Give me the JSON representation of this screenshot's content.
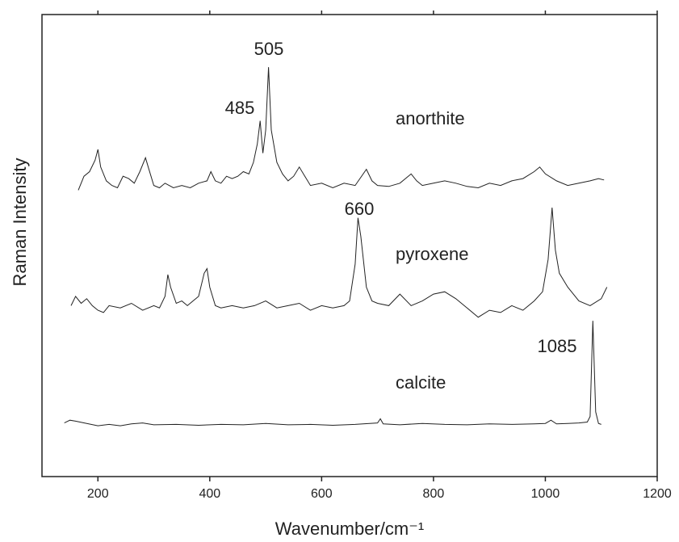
{
  "chart_data": {
    "type": "line",
    "x_label": "Wavenumber/cm⁻¹",
    "y_label": "Raman Intensity",
    "xlim": [
      100,
      1200
    ],
    "xticks": [
      200,
      400,
      600,
      800,
      1000,
      1200
    ],
    "ylim": [
      0,
      100
    ],
    "annotations": [
      "505",
      "485",
      "660",
      "1085"
    ],
    "series": [
      {
        "name": "anorthite",
        "color": "#222222",
        "x": [
          165,
          175,
          185,
          195,
          200,
          205,
          215,
          225,
          235,
          245,
          255,
          265,
          275,
          285,
          290,
          300,
          310,
          320,
          335,
          350,
          365,
          380,
          395,
          402,
          410,
          420,
          430,
          440,
          450,
          460,
          470,
          478,
          485,
          490,
          495,
          500,
          505,
          510,
          520,
          530,
          540,
          550,
          560,
          570,
          580,
          600,
          620,
          640,
          660,
          680,
          690,
          700,
          720,
          740,
          760,
          770,
          780,
          800,
          820,
          840,
          860,
          880,
          900,
          920,
          940,
          960,
          980,
          990,
          1000,
          1020,
          1040,
          1060,
          1080,
          1095,
          1105
        ],
        "values": [
          62,
          65,
          66,
          68.5,
          70.8,
          67,
          64,
          63,
          62.5,
          65,
          64.5,
          63.5,
          66,
          69,
          67,
          63,
          62.5,
          63.5,
          62.5,
          63,
          62.5,
          63.5,
          64,
          66,
          64,
          63.5,
          65,
          64.5,
          65,
          66,
          65.5,
          68,
          72,
          77,
          70,
          75,
          88.6,
          75,
          68,
          65.5,
          64,
          65,
          67,
          65,
          63,
          63.5,
          62.5,
          63.5,
          63,
          66.5,
          64,
          63,
          62.8,
          63.5,
          65.5,
          64,
          63,
          63.5,
          64,
          63.5,
          62.8,
          62.5,
          63.5,
          63,
          64,
          64.5,
          66,
          67,
          65.5,
          64,
          63,
          63.5,
          64,
          64.5,
          64.2
        ]
      },
      {
        "name": "pyroxene",
        "color": "#222222",
        "x": [
          152,
          160,
          170,
          180,
          190,
          200,
          210,
          220,
          240,
          260,
          280,
          300,
          310,
          320,
          325,
          330,
          340,
          350,
          360,
          370,
          380,
          390,
          395,
          400,
          410,
          420,
          440,
          460,
          480,
          500,
          520,
          540,
          560,
          580,
          600,
          620,
          640,
          650,
          660,
          665,
          670,
          680,
          690,
          700,
          720,
          740,
          760,
          780,
          800,
          820,
          840,
          860,
          880,
          900,
          920,
          940,
          960,
          980,
          995,
          1005,
          1012,
          1018,
          1025,
          1040,
          1060,
          1080,
          1100,
          1110
        ],
        "values": [
          37,
          39,
          37.5,
          38.5,
          37,
          36,
          35.5,
          37,
          36.5,
          37.5,
          36,
          37,
          36.5,
          39,
          43.7,
          41,
          37.5,
          38,
          37,
          38,
          39,
          44,
          45,
          41,
          37,
          36.5,
          37,
          36.5,
          37,
          38,
          36.5,
          37,
          37.5,
          36,
          37,
          36.5,
          37,
          38,
          46,
          56,
          52,
          41,
          38,
          37.5,
          37,
          39.5,
          37,
          38,
          39.5,
          40,
          38.5,
          36.5,
          34.5,
          36,
          35.5,
          37,
          36,
          38,
          40,
          47,
          58.2,
          49,
          44,
          41,
          38,
          37,
          38.5,
          41
        ]
      },
      {
        "name": "calcite",
        "color": "#222222",
        "x": [
          140,
          150,
          160,
          180,
          200,
          220,
          240,
          260,
          280,
          300,
          340,
          380,
          420,
          460,
          500,
          540,
          580,
          620,
          660,
          700,
          705,
          710,
          740,
          780,
          820,
          860,
          900,
          940,
          980,
          1000,
          1010,
          1020,
          1040,
          1060,
          1075,
          1080,
          1085,
          1090,
          1095,
          1100
        ],
        "values": [
          11.6,
          12.2,
          12,
          11.5,
          11,
          11.3,
          11,
          11.4,
          11.6,
          11.2,
          11.3,
          11.1,
          11.3,
          11.2,
          11.5,
          11.2,
          11.3,
          11.1,
          11.3,
          11.6,
          12.5,
          11.4,
          11.2,
          11.5,
          11.3,
          11.2,
          11.4,
          11.3,
          11.4,
          11.5,
          12.2,
          11.4,
          11.5,
          11.6,
          11.8,
          13,
          33.7,
          14,
          11.5,
          11.3
        ]
      }
    ]
  }
}
